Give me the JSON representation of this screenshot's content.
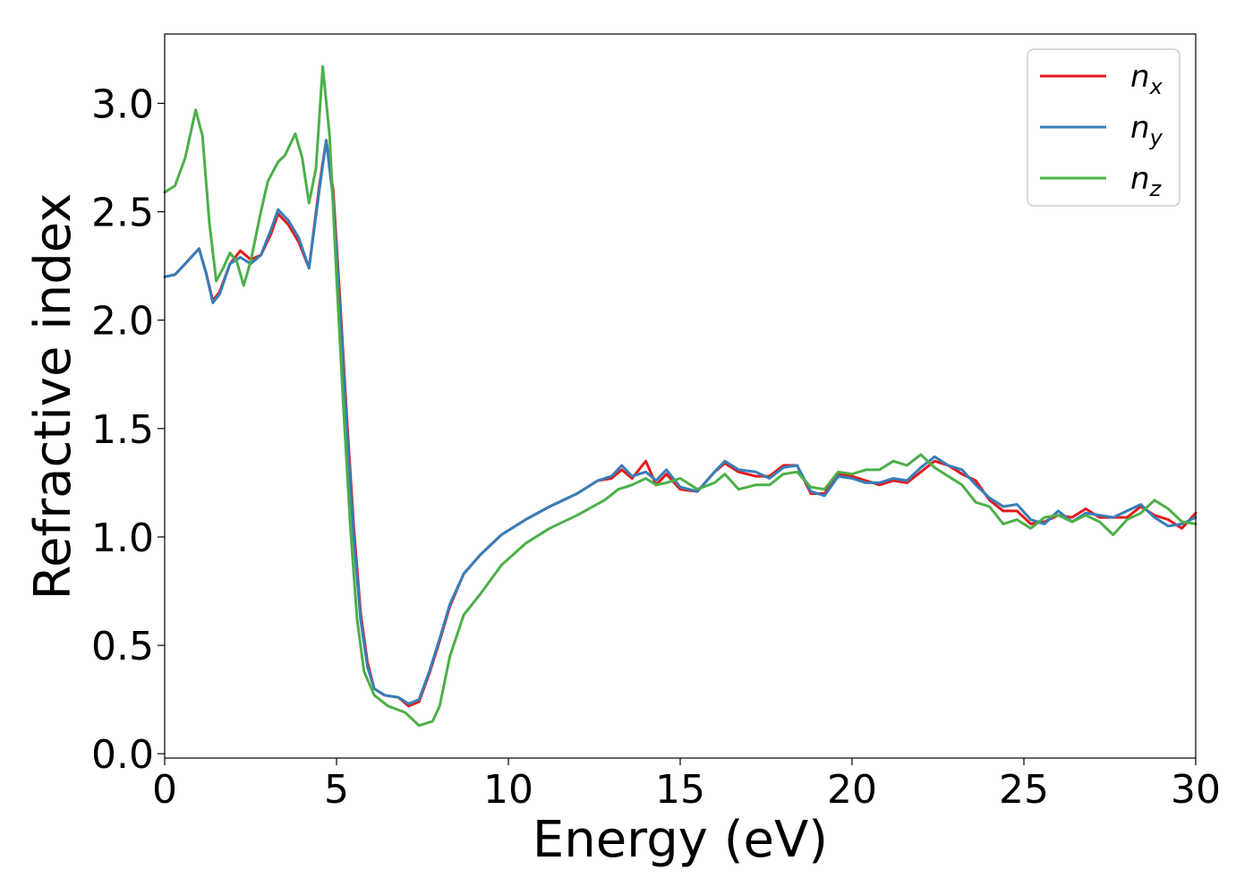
{
  "chart_data": {
    "type": "line",
    "xlabel": "Energy (eV)",
    "ylabel": "Refractive index",
    "xlim": [
      0,
      30
    ],
    "ylim": [
      -0.02,
      3.32
    ],
    "xticks": [
      "0",
      "5",
      "10",
      "15",
      "20",
      "25",
      "30"
    ],
    "yticks": [
      "0.0",
      "0.5",
      "1.0",
      "1.5",
      "2.0",
      "2.5",
      "3.0"
    ],
    "grid": false,
    "legend_position": "top-right",
    "series": [
      {
        "name": "n",
        "subscript": "x",
        "color": "#e41a1c",
        "points": [
          [
            0,
            2.2
          ],
          [
            0.3,
            2.21
          ],
          [
            0.6,
            2.26
          ],
          [
            1.0,
            2.33
          ],
          [
            1.2,
            2.22
          ],
          [
            1.4,
            2.09
          ],
          [
            1.6,
            2.13
          ],
          [
            1.9,
            2.26
          ],
          [
            2.2,
            2.32
          ],
          [
            2.5,
            2.28
          ],
          [
            2.8,
            2.3
          ],
          [
            3.1,
            2.4
          ],
          [
            3.3,
            2.49
          ],
          [
            3.6,
            2.44
          ],
          [
            3.9,
            2.36
          ],
          [
            4.2,
            2.24
          ],
          [
            4.5,
            2.62
          ],
          [
            4.7,
            2.83
          ],
          [
            4.9,
            2.6
          ],
          [
            5.1,
            2.1
          ],
          [
            5.3,
            1.55
          ],
          [
            5.5,
            1.05
          ],
          [
            5.7,
            0.65
          ],
          [
            5.9,
            0.42
          ],
          [
            6.1,
            0.3
          ],
          [
            6.4,
            0.27
          ],
          [
            6.8,
            0.26
          ],
          [
            7.1,
            0.22
          ],
          [
            7.4,
            0.24
          ],
          [
            7.7,
            0.37
          ],
          [
            8.0,
            0.52
          ],
          [
            8.3,
            0.68
          ],
          [
            8.7,
            0.83
          ],
          [
            9.2,
            0.92
          ],
          [
            9.8,
            1.01
          ],
          [
            10.5,
            1.08
          ],
          [
            11.2,
            1.14
          ],
          [
            12.0,
            1.2
          ],
          [
            12.6,
            1.26
          ],
          [
            13.0,
            1.27
          ],
          [
            13.3,
            1.31
          ],
          [
            13.6,
            1.27
          ],
          [
            14.0,
            1.35
          ],
          [
            14.3,
            1.24
          ],
          [
            14.6,
            1.29
          ],
          [
            15.0,
            1.22
          ],
          [
            15.5,
            1.21
          ],
          [
            16.0,
            1.3
          ],
          [
            16.3,
            1.34
          ],
          [
            16.7,
            1.3
          ],
          [
            17.2,
            1.28
          ],
          [
            17.6,
            1.28
          ],
          [
            18.0,
            1.33
          ],
          [
            18.4,
            1.33
          ],
          [
            18.8,
            1.2
          ],
          [
            19.2,
            1.2
          ],
          [
            19.6,
            1.29
          ],
          [
            20.0,
            1.28
          ],
          [
            20.4,
            1.26
          ],
          [
            20.8,
            1.24
          ],
          [
            21.2,
            1.26
          ],
          [
            21.6,
            1.25
          ],
          [
            22.0,
            1.3
          ],
          [
            22.4,
            1.35
          ],
          [
            22.8,
            1.33
          ],
          [
            23.2,
            1.29
          ],
          [
            23.6,
            1.26
          ],
          [
            24.0,
            1.17
          ],
          [
            24.4,
            1.12
          ],
          [
            24.8,
            1.12
          ],
          [
            25.2,
            1.06
          ],
          [
            25.6,
            1.07
          ],
          [
            26.0,
            1.1
          ],
          [
            26.4,
            1.09
          ],
          [
            26.8,
            1.13
          ],
          [
            27.2,
            1.09
          ],
          [
            27.6,
            1.09
          ],
          [
            28.0,
            1.09
          ],
          [
            28.4,
            1.14
          ],
          [
            28.8,
            1.1
          ],
          [
            29.2,
            1.08
          ],
          [
            29.6,
            1.04
          ],
          [
            30.0,
            1.11
          ]
        ]
      },
      {
        "name": "n",
        "subscript": "y",
        "color": "#377eb8",
        "points": [
          [
            0,
            2.2
          ],
          [
            0.3,
            2.21
          ],
          [
            0.6,
            2.26
          ],
          [
            1.0,
            2.33
          ],
          [
            1.2,
            2.22
          ],
          [
            1.4,
            2.08
          ],
          [
            1.6,
            2.12
          ],
          [
            1.9,
            2.26
          ],
          [
            2.2,
            2.29
          ],
          [
            2.5,
            2.26
          ],
          [
            2.8,
            2.3
          ],
          [
            3.1,
            2.42
          ],
          [
            3.3,
            2.51
          ],
          [
            3.6,
            2.46
          ],
          [
            3.9,
            2.38
          ],
          [
            4.2,
            2.24
          ],
          [
            4.5,
            2.6
          ],
          [
            4.7,
            2.83
          ],
          [
            4.9,
            2.56
          ],
          [
            5.1,
            2.05
          ],
          [
            5.3,
            1.5
          ],
          [
            5.5,
            1.0
          ],
          [
            5.7,
            0.62
          ],
          [
            5.9,
            0.4
          ],
          [
            6.1,
            0.3
          ],
          [
            6.4,
            0.27
          ],
          [
            6.8,
            0.26
          ],
          [
            7.1,
            0.23
          ],
          [
            7.4,
            0.25
          ],
          [
            7.7,
            0.38
          ],
          [
            8.0,
            0.53
          ],
          [
            8.3,
            0.69
          ],
          [
            8.7,
            0.83
          ],
          [
            9.2,
            0.92
          ],
          [
            9.8,
            1.01
          ],
          [
            10.5,
            1.08
          ],
          [
            11.2,
            1.14
          ],
          [
            12.0,
            1.2
          ],
          [
            12.6,
            1.26
          ],
          [
            13.0,
            1.28
          ],
          [
            13.3,
            1.33
          ],
          [
            13.6,
            1.28
          ],
          [
            14.0,
            1.3
          ],
          [
            14.3,
            1.26
          ],
          [
            14.6,
            1.31
          ],
          [
            15.0,
            1.23
          ],
          [
            15.5,
            1.21
          ],
          [
            16.0,
            1.3
          ],
          [
            16.3,
            1.35
          ],
          [
            16.7,
            1.31
          ],
          [
            17.2,
            1.3
          ],
          [
            17.6,
            1.27
          ],
          [
            18.0,
            1.32
          ],
          [
            18.4,
            1.33
          ],
          [
            18.8,
            1.21
          ],
          [
            19.2,
            1.19
          ],
          [
            19.6,
            1.28
          ],
          [
            20.0,
            1.27
          ],
          [
            20.4,
            1.25
          ],
          [
            20.8,
            1.25
          ],
          [
            21.2,
            1.27
          ],
          [
            21.6,
            1.26
          ],
          [
            22.0,
            1.32
          ],
          [
            22.4,
            1.37
          ],
          [
            22.8,
            1.33
          ],
          [
            23.2,
            1.31
          ],
          [
            23.6,
            1.24
          ],
          [
            24.0,
            1.18
          ],
          [
            24.4,
            1.14
          ],
          [
            24.8,
            1.15
          ],
          [
            25.2,
            1.08
          ],
          [
            25.6,
            1.06
          ],
          [
            26.0,
            1.12
          ],
          [
            26.4,
            1.07
          ],
          [
            26.8,
            1.11
          ],
          [
            27.2,
            1.1
          ],
          [
            27.6,
            1.09
          ],
          [
            28.0,
            1.12
          ],
          [
            28.4,
            1.15
          ],
          [
            28.8,
            1.09
          ],
          [
            29.2,
            1.05
          ],
          [
            29.6,
            1.06
          ],
          [
            30.0,
            1.09
          ]
        ]
      },
      {
        "name": "n",
        "subscript": "z",
        "color": "#4daf4a",
        "points": [
          [
            0,
            2.59
          ],
          [
            0.3,
            2.62
          ],
          [
            0.6,
            2.75
          ],
          [
            0.9,
            2.97
          ],
          [
            1.1,
            2.85
          ],
          [
            1.3,
            2.45
          ],
          [
            1.5,
            2.18
          ],
          [
            1.7,
            2.24
          ],
          [
            1.9,
            2.31
          ],
          [
            2.1,
            2.27
          ],
          [
            2.3,
            2.16
          ],
          [
            2.5,
            2.27
          ],
          [
            2.8,
            2.5
          ],
          [
            3.0,
            2.64
          ],
          [
            3.3,
            2.73
          ],
          [
            3.5,
            2.76
          ],
          [
            3.8,
            2.86
          ],
          [
            4.0,
            2.75
          ],
          [
            4.2,
            2.54
          ],
          [
            4.4,
            2.7
          ],
          [
            4.6,
            3.17
          ],
          [
            4.8,
            2.85
          ],
          [
            5.0,
            2.2
          ],
          [
            5.2,
            1.6
          ],
          [
            5.4,
            1.05
          ],
          [
            5.6,
            0.62
          ],
          [
            5.8,
            0.38
          ],
          [
            6.1,
            0.27
          ],
          [
            6.5,
            0.22
          ],
          [
            7.0,
            0.19
          ],
          [
            7.4,
            0.13
          ],
          [
            7.8,
            0.15
          ],
          [
            8.0,
            0.22
          ],
          [
            8.3,
            0.45
          ],
          [
            8.7,
            0.64
          ],
          [
            9.2,
            0.74
          ],
          [
            9.8,
            0.87
          ],
          [
            10.5,
            0.97
          ],
          [
            11.2,
            1.04
          ],
          [
            12.0,
            1.1
          ],
          [
            12.8,
            1.17
          ],
          [
            13.2,
            1.22
          ],
          [
            13.6,
            1.24
          ],
          [
            14.0,
            1.27
          ],
          [
            14.3,
            1.24
          ],
          [
            14.6,
            1.25
          ],
          [
            15.0,
            1.27
          ],
          [
            15.5,
            1.22
          ],
          [
            16.0,
            1.25
          ],
          [
            16.3,
            1.29
          ],
          [
            16.7,
            1.22
          ],
          [
            17.2,
            1.24
          ],
          [
            17.6,
            1.24
          ],
          [
            18.0,
            1.29
          ],
          [
            18.4,
            1.3
          ],
          [
            18.8,
            1.23
          ],
          [
            19.2,
            1.22
          ],
          [
            19.6,
            1.3
          ],
          [
            20.0,
            1.29
          ],
          [
            20.4,
            1.31
          ],
          [
            20.8,
            1.31
          ],
          [
            21.2,
            1.35
          ],
          [
            21.6,
            1.33
          ],
          [
            22.0,
            1.38
          ],
          [
            22.4,
            1.32
          ],
          [
            22.8,
            1.28
          ],
          [
            23.2,
            1.24
          ],
          [
            23.6,
            1.16
          ],
          [
            24.0,
            1.14
          ],
          [
            24.4,
            1.06
          ],
          [
            24.8,
            1.08
          ],
          [
            25.2,
            1.04
          ],
          [
            25.6,
            1.09
          ],
          [
            26.0,
            1.1
          ],
          [
            26.4,
            1.07
          ],
          [
            26.8,
            1.1
          ],
          [
            27.2,
            1.07
          ],
          [
            27.6,
            1.01
          ],
          [
            28.0,
            1.08
          ],
          [
            28.4,
            1.11
          ],
          [
            28.8,
            1.17
          ],
          [
            29.2,
            1.13
          ],
          [
            29.6,
            1.07
          ],
          [
            30.0,
            1.06
          ]
        ]
      }
    ]
  }
}
